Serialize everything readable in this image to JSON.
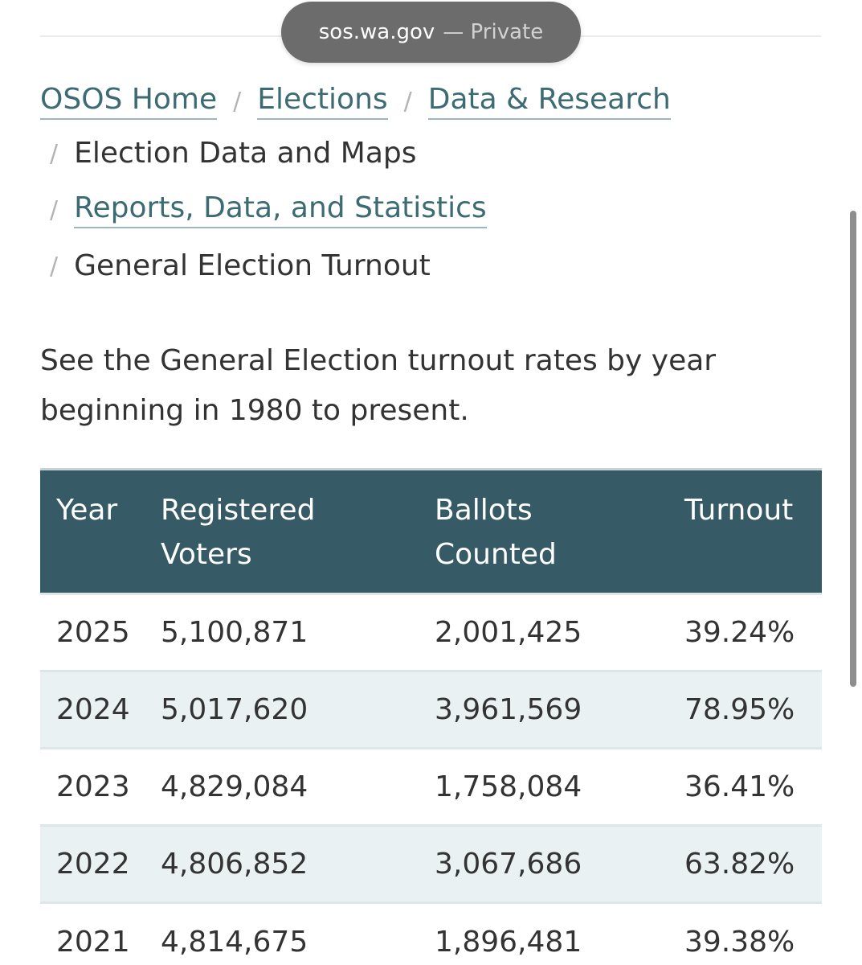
{
  "browser": {
    "url": "sos.wa.gov",
    "mode": "— Private"
  },
  "breadcrumb": {
    "separator": "/",
    "items": [
      {
        "label": "OSOS Home",
        "link": true
      },
      {
        "label": "Elections",
        "link": true
      },
      {
        "label": "Data & Research",
        "link": true
      },
      {
        "label": "Election Data and Maps",
        "link": false
      },
      {
        "label": "Reports, Data, and Statistics",
        "link": true
      },
      {
        "label": "General Election Turnout",
        "link": false
      }
    ]
  },
  "intro": "See the General Election turnout rates by year beginning in 1980 to present.",
  "table": {
    "headers": {
      "year": "Year",
      "registered_line1": "Registered",
      "registered_line2": "Voters",
      "ballots_line1": "Ballots",
      "ballots_line2": "Counted",
      "turnout": "Turnout"
    },
    "rows": [
      {
        "year": "2025",
        "registered": "5,100,871",
        "ballots": "2,001,425",
        "turnout": "39.24%"
      },
      {
        "year": "2024",
        "registered": "5,017,620",
        "ballots": "3,961,569",
        "turnout": "78.95%"
      },
      {
        "year": "2023",
        "registered": "4,829,084",
        "ballots": "1,758,084",
        "turnout": "36.41%"
      },
      {
        "year": "2022",
        "registered": "4,806,852",
        "ballots": "3,067,686",
        "turnout": "63.82%"
      },
      {
        "year": "2021",
        "registered": "4,814,675",
        "ballots": "1,896,481",
        "turnout": "39.38%"
      }
    ]
  },
  "colors": {
    "header_bg": "#365b66",
    "link": "#3d6b73",
    "stripe": "#e9f1f2"
  }
}
